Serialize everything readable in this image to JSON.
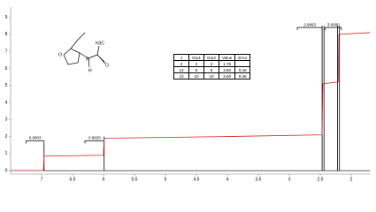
{
  "chart_data": {
    "type": "line",
    "xlim": [
      7.5,
      1.7
    ],
    "ylim": [
      -0.2,
      9.6
    ],
    "xticks": [
      7.0,
      6.5,
      6.0,
      5.5,
      5.0,
      4.5,
      4.0,
      3.5,
      3.0,
      2.5,
      2.0
    ],
    "yticks": [
      0,
      1,
      2,
      3,
      4,
      5,
      6,
      7,
      8,
      9
    ],
    "series": [
      {
        "color": "#d62020",
        "x": [
          7.5,
          6.97,
          6.96,
          6.0,
          5.99,
          4.0,
          2.47,
          2.46,
          2.21,
          2.2,
          1.7
        ],
        "values": [
          0,
          0,
          0.85,
          0.9,
          1.9,
          2.0,
          2.1,
          5.1,
          5.2,
          8.0,
          8.1
        ]
      }
    ],
    "peaks": {
      "color": "#000000",
      "x": [
        6.96,
        5.99,
        2.47,
        2.44,
        2.22,
        2.19
      ],
      "values": [
        1.6,
        2.0,
        8.5,
        8.5,
        8.5,
        8.5
      ]
    },
    "integrals": [
      {
        "label": "0.9803",
        "from": 7.25,
        "to": 6.96,
        "level": 1.75
      },
      {
        "label": "0.9825",
        "from": 6.3,
        "to": 5.99,
        "level": 1.75
      },
      {
        "label": "2.9893",
        "from": 2.87,
        "to": 2.47,
        "level": 8.4
      },
      {
        "label": "3.0000",
        "from": 2.42,
        "to": 2.16,
        "level": 8.4
      }
    ]
  },
  "molecule": {
    "atoms": [
      "O",
      "N",
      "H",
      "H3C",
      "O"
    ]
  },
  "table": {
    "header": [
      "J",
      "Grp1",
      "Grp2",
      "Value",
      "Error"
    ],
    "rows": [
      [
        "2",
        "2",
        "3",
        "1.75"
      ],
      [
        "13",
        "9",
        "9",
        "3.60",
        "9.46"
      ],
      [
        "13",
        "10",
        "10",
        "3.60",
        "9.46"
      ]
    ]
  }
}
